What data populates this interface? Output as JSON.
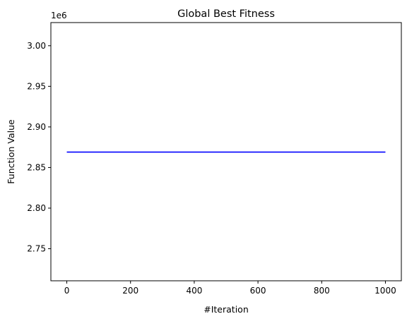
{
  "chart_data": {
    "type": "line",
    "title": "Global Best Fitness",
    "xlabel": "#Iteration",
    "ylabel": "Function Value",
    "y_offset_text": "1e6",
    "xlim": [
      -50,
      1050
    ],
    "ylim": [
      2.7105,
      3.0285
    ],
    "x_ticks": [
      0,
      200,
      400,
      600,
      800,
      1000
    ],
    "x_tick_labels": [
      "0",
      "200",
      "400",
      "600",
      "800",
      "1000"
    ],
    "y_ticks": [
      2.75,
      2.8,
      2.85,
      2.9,
      2.95,
      3.0
    ],
    "y_tick_labels": [
      "2.75",
      "2.80",
      "2.85",
      "2.90",
      "2.95",
      "3.00"
    ],
    "grid": false,
    "series": [
      {
        "color": "#0000ff",
        "x": [
          0,
          1000
        ],
        "y": [
          2.869,
          2.869
        ]
      }
    ]
  }
}
